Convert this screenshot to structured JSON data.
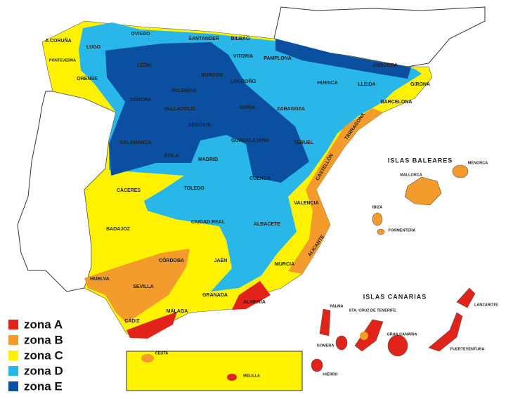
{
  "legend": [
    {
      "label": "zona A",
      "color": "#e2231a"
    },
    {
      "label": "zona B",
      "color": "#f39c2c"
    },
    {
      "label": "zona C",
      "color": "#fff200"
    },
    {
      "label": "zona D",
      "color": "#29b6e8"
    },
    {
      "label": "zona E",
      "color": "#0b4fa0"
    }
  ],
  "labels": [
    "A CORUÑA",
    "LUGO",
    "OVIEDO",
    "SANTANDER",
    "BILBAO",
    "PONTEVEDRA",
    "ORENSE",
    "LEÓN",
    "VITORIA",
    "PAMPLONA",
    "ANDORRA",
    "BURGOS",
    "LOGROÑO",
    "HUESCA",
    "LLEIDA",
    "GIRONA",
    "PALENCIA",
    "ZAMORA",
    "VALLADOLID",
    "SORIA",
    "ZARAGOZA",
    "BARCELONA",
    "SEGOVIA",
    "SALAMANCA",
    "GUADALAJARA",
    "TERUEL",
    "TARRAGONA",
    "ÁVILA",
    "MADRID",
    "CUENCA",
    "CASTELLÓN",
    "ISLAS BALEARES",
    "MALLORCA",
    "MENORCA",
    "CÁCERES",
    "TOLEDO",
    "VALENCIA",
    "IBIZA",
    "FORMENTERA",
    "BADAJOZ",
    "CIUDAD REAL",
    "ALBACETE",
    "ALICANTE",
    "CÓRDOBA",
    "JAÉN",
    "MURCIA",
    "HUELVA",
    "SEVILLA",
    "GRANADA",
    "ALMERÍA",
    "MÁLAGA",
    "CÁDIZ",
    "CEUTA",
    "MELILLA",
    "ISLAS CANARIAS",
    "LANZAROTE",
    "PALMA",
    "STA. CRUZ DE TENERIFE",
    "GOMERA",
    "HIERRO",
    "GRAN CANARIA",
    "FUERTEVENTURA"
  ]
}
